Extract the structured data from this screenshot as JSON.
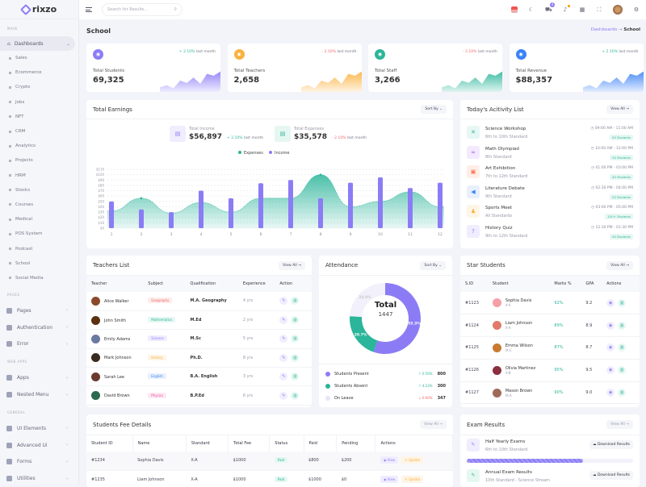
{
  "sidebar": {
    "brand": "rixzo",
    "sections": {
      "main": "MAIN",
      "pages": "PAGES",
      "webapps": "WEB APPS",
      "general": "GENERAL"
    },
    "dashboards": "Dashboards",
    "dash_items": [
      "Sales",
      "Ecommerce",
      "Crypto",
      "Jobs",
      "NFT",
      "CRM",
      "Analytics",
      "Projects",
      "HRM",
      "Stocks",
      "Courses",
      "Medical",
      "POS System",
      "Podcast",
      "School",
      "Social Media"
    ],
    "pages_items": [
      "Pages",
      "Authentication",
      "Error"
    ],
    "webapp_items": [
      "Apps",
      "Nested Menu"
    ],
    "general_items": [
      "UI Elements",
      "Advanced Ui",
      "Forms",
      "Utilities"
    ]
  },
  "header": {
    "search_placeholder": "Search for Results...",
    "cart_count": "4"
  },
  "page": {
    "title": "School",
    "breadcrumb": [
      "Dashboards",
      "School"
    ],
    "sep": "→"
  },
  "stats": [
    {
      "label": "Total Students",
      "value": "69,325",
      "change": "2.10%",
      "dir": "up",
      "suffix": "last month",
      "color": "#8b7cf6"
    },
    {
      "label": "Total Teachers",
      "value": "2,658",
      "change": "2.10%",
      "dir": "down",
      "suffix": "last month",
      "color": "#fbb13c"
    },
    {
      "label": "Total Staff",
      "value": "3,266",
      "change": "2.10%",
      "dir": "down",
      "suffix": "last month",
      "color": "#2bb59a"
    },
    {
      "label": "Total Revenue",
      "value": "$88,357",
      "change": "2.10%",
      "dir": "up",
      "suffix": "last month",
      "color": "#3b82f6"
    }
  ],
  "earnings": {
    "title": "Total Earnings",
    "sort": "Sort By",
    "income_label": "Total Income",
    "income": "$56,897",
    "income_change": "2.10%",
    "expense_label": "Total Expenses",
    "expense": "$35,578",
    "expense_change": "2.10%",
    "suffix": "last month"
  },
  "chart_data": {
    "type": "bar",
    "categories": [
      "1",
      "2",
      "3",
      "4",
      "5",
      "6",
      "7",
      "8",
      "9",
      "10",
      "11",
      "12"
    ],
    "series": [
      {
        "name": "Expenses",
        "type": "area",
        "color": "#2bb59a",
        "values": [
          32,
          56,
          28,
          48,
          30,
          56,
          56,
          100,
          40,
          50,
          68,
          40
        ]
      },
      {
        "name": "Income",
        "type": "bar",
        "color": "#8b7cf6",
        "values": [
          50,
          35,
          30,
          70,
          56,
          84,
          90,
          56,
          85,
          95,
          75,
          85
        ]
      }
    ],
    "ylim": [
      0,
      110
    ],
    "yticks": [
      "$0",
      "$10",
      "$20",
      "$30",
      "$40",
      "$50",
      "$60",
      "$70",
      "$80",
      "$90",
      "$100",
      "$110"
    ],
    "legend": "top",
    "grid": true
  },
  "activity": {
    "title": "Today's Acitivity List",
    "view_all": "View All →",
    "items": [
      {
        "title": "Science Workshop",
        "sub": "6th to 10th Standard",
        "time": "09:00 AM  -  11:00 AM",
        "count": "50 Students",
        "icon": "✕",
        "bg": "#e6f7f4",
        "fg": "#2bb59a"
      },
      {
        "title": "Math Olympiad",
        "sub": "8th Standard",
        "time": "10:00 AM  -  12:00 PM",
        "count": "30 Students",
        "icon": "∞",
        "bg": "#f3eafd",
        "fg": "#a855f7"
      },
      {
        "title": "Art Exhibition",
        "sub": "7th to 12th Standard",
        "time": "01:00 PM  -  03:00 PM",
        "count": "40 Students",
        "icon": "▣",
        "bg": "#fdeee8",
        "fg": "#f97350"
      },
      {
        "title": "Literature Debate",
        "sub": "9th Standard",
        "time": "02:30 PM  -  04:00 PM",
        "count": "20 Students",
        "icon": "◀",
        "bg": "#e8f0fd",
        "fg": "#3b82f6"
      },
      {
        "title": "Sports Meet",
        "sub": "All Standards",
        "time": "03:00 PM  -  05:00 PM",
        "count": "100+ Students",
        "icon": "♟",
        "bg": "#fef5e6",
        "fg": "#fbb13c"
      },
      {
        "title": "History Quiz",
        "sub": "9th to 12th Standard",
        "time": "12:30 PM  -  01:30 PM",
        "count": "40 Students",
        "icon": "?",
        "bg": "#efedfe",
        "fg": "#8b7cf6"
      }
    ]
  },
  "teachers": {
    "title": "Teachers List",
    "view_all": "View All →",
    "columns": [
      "Teacher",
      "Subject",
      "Qualification",
      "Experience",
      "Action"
    ],
    "rows": [
      {
        "name": "Alice Walker",
        "subject": "Geography",
        "qual": "M.A. Geography",
        "exp": "4 yrs",
        "c": "#f26666",
        "bg": "#fdecec"
      },
      {
        "name": "John Smith",
        "subject": "Mathematics",
        "qual": "M.Ed",
        "exp": "2 yrs",
        "c": "#2bb59a",
        "bg": "#e6f7f2"
      },
      {
        "name": "Emily Adams",
        "subject": "Science",
        "qual": "M.Sc",
        "exp": "5 yrs",
        "c": "#8b7cf6",
        "bg": "#efedfe"
      },
      {
        "name": "Mark Johnson",
        "subject": "History",
        "qual": "Ph.D.",
        "exp": "8 yrs",
        "c": "#fbb13c",
        "bg": "#fef5e6"
      },
      {
        "name": "Sarah Lee",
        "subject": "English",
        "qual": "B.A. English",
        "exp": "3 yrs",
        "c": "#3b82f6",
        "bg": "#e8f0fd"
      },
      {
        "name": "David Brown",
        "subject": "Physics",
        "qual": "B.P.Ed",
        "exp": "6 yrs",
        "c": "#ec4899",
        "bg": "#fdeaf3"
      }
    ]
  },
  "attendance": {
    "title": "Attendance",
    "sort": "Sort By",
    "total_label": "Total",
    "total": "1447",
    "slices": [
      {
        "name": "Students Present",
        "value": 800,
        "pct_label": "55.3%",
        "change": "0.59%",
        "dir": "up",
        "color": "#8b7cf6"
      },
      {
        "name": "Students Absent",
        "value": 300,
        "pct_label": "20.7%",
        "change": "4.23%",
        "dir": "up",
        "color": "#2bb59a"
      },
      {
        "name": "On Leave",
        "value": 347,
        "pct_label": "24.0%",
        "change": "0.00%",
        "dir": "down",
        "color": "#f1f0fb"
      }
    ]
  },
  "star": {
    "title": "Star Students",
    "view_all": "View All →",
    "columns": [
      "S.ID",
      "Student",
      "Marks %",
      "GPA",
      "Actions"
    ],
    "rows": [
      {
        "id": "#1123",
        "name": "Sophia Davis",
        "cls": "X-A",
        "marks": "92%",
        "gpa": "9.2"
      },
      {
        "id": "#1124",
        "name": "Liam Johnson",
        "cls": "X-A",
        "marks": "89%",
        "gpa": "8.9"
      },
      {
        "id": "#1125",
        "name": "Emma Wilson",
        "cls": "IX-C",
        "marks": "87%",
        "gpa": "8.7"
      },
      {
        "id": "#1126",
        "name": "Olivia Martinez",
        "cls": "X-B",
        "marks": "95%",
        "gpa": "9.5"
      },
      {
        "id": "#1127",
        "name": "Mason Brown",
        "cls": "IX-A",
        "marks": "90%",
        "gpa": "9.0"
      }
    ]
  },
  "fees": {
    "title": "Students Fee Details",
    "view_all": "View All →",
    "columns": [
      "Student ID",
      "Name",
      "Standard",
      "Total Fee",
      "Status",
      "Paid",
      "Pending",
      "Actions"
    ],
    "view": "View",
    "update": "Update",
    "rows": [
      {
        "id": "#1234",
        "name": "Sophia Davis",
        "std": "X-A",
        "total": "$1000",
        "status": "Paid",
        "paid": "$800",
        "pending": "$200"
      },
      {
        "id": "#1235",
        "name": "Liam Johnson",
        "std": "X-A",
        "total": "$1000",
        "status": "Paid",
        "paid": "$1000",
        "pending": "$0"
      }
    ]
  },
  "exams": {
    "title": "Exam Results",
    "view_all": "View All →",
    "download": "Download Results",
    "items": [
      {
        "title": "Half Yearly Exams",
        "sub": "6th to 10th Standard",
        "progress": 70
      },
      {
        "title": "Annual Exam Results",
        "sub": "10th Standard - Science Stream"
      }
    ]
  }
}
